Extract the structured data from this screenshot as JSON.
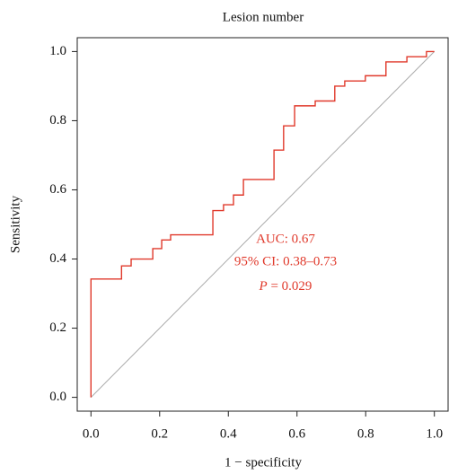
{
  "chart_data": {
    "type": "line",
    "title": "Lesion number",
    "x_label": "1 − specificity",
    "y_label": "Sensitivity",
    "series": [
      {
        "color": "#e0392b",
        "x": [
          0,
          0,
          0.089,
          0.089,
          0.117,
          0.117,
          0.18,
          0.18,
          0.206,
          0.206,
          0.232,
          0.232,
          0.355,
          0.355,
          0.386,
          0.386,
          0.415,
          0.415,
          0.444,
          0.444,
          0.533,
          0.533,
          0.561,
          0.561,
          0.593,
          0.593,
          0.653,
          0.653,
          0.71,
          0.71,
          0.739,
          0.739,
          0.799,
          0.799,
          0.859,
          0.859,
          0.92,
          0.92,
          0.977,
          0.977,
          1
        ],
        "values": [
          0,
          0.342,
          0.342,
          0.38,
          0.38,
          0.4,
          0.4,
          0.43,
          0.43,
          0.455,
          0.455,
          0.47,
          0.47,
          0.54,
          0.54,
          0.557,
          0.557,
          0.585,
          0.585,
          0.63,
          0.63,
          0.715,
          0.715,
          0.785,
          0.785,
          0.843,
          0.843,
          0.857,
          0.857,
          0.9,
          0.9,
          0.915,
          0.915,
          0.93,
          0.93,
          0.97,
          0.97,
          0.985,
          0.985,
          1,
          1
        ]
      }
    ],
    "annotations": [
      "AUC: 0.67",
      "95% CI: 0.38–0.73",
      [
        "P",
        " = 0.029"
      ]
    ],
    "xlim": [
      -0.04,
      1.04
    ],
    "ylim": [
      -0.04,
      1.04
    ],
    "xticks": [
      {
        "value": 0,
        "label": "0.0"
      },
      {
        "value": 0.2,
        "label": "0.2"
      },
      {
        "value": 0.4,
        "label": "0.4"
      },
      {
        "value": 0.6,
        "label": "0.6"
      },
      {
        "value": 0.8,
        "label": "0.8"
      },
      {
        "value": 1,
        "label": "1.0"
      }
    ],
    "yticks": [
      {
        "value": 0,
        "label": "0.0"
      },
      {
        "value": 0.2,
        "label": "0.2"
      },
      {
        "value": 0.4,
        "label": "0.4"
      },
      {
        "value": 0.6,
        "label": "0.6"
      },
      {
        "value": 0.8,
        "label": "0.8"
      },
      {
        "value": 1,
        "label": "1.0"
      }
    ],
    "reference_color": "#aaaaaa"
  }
}
